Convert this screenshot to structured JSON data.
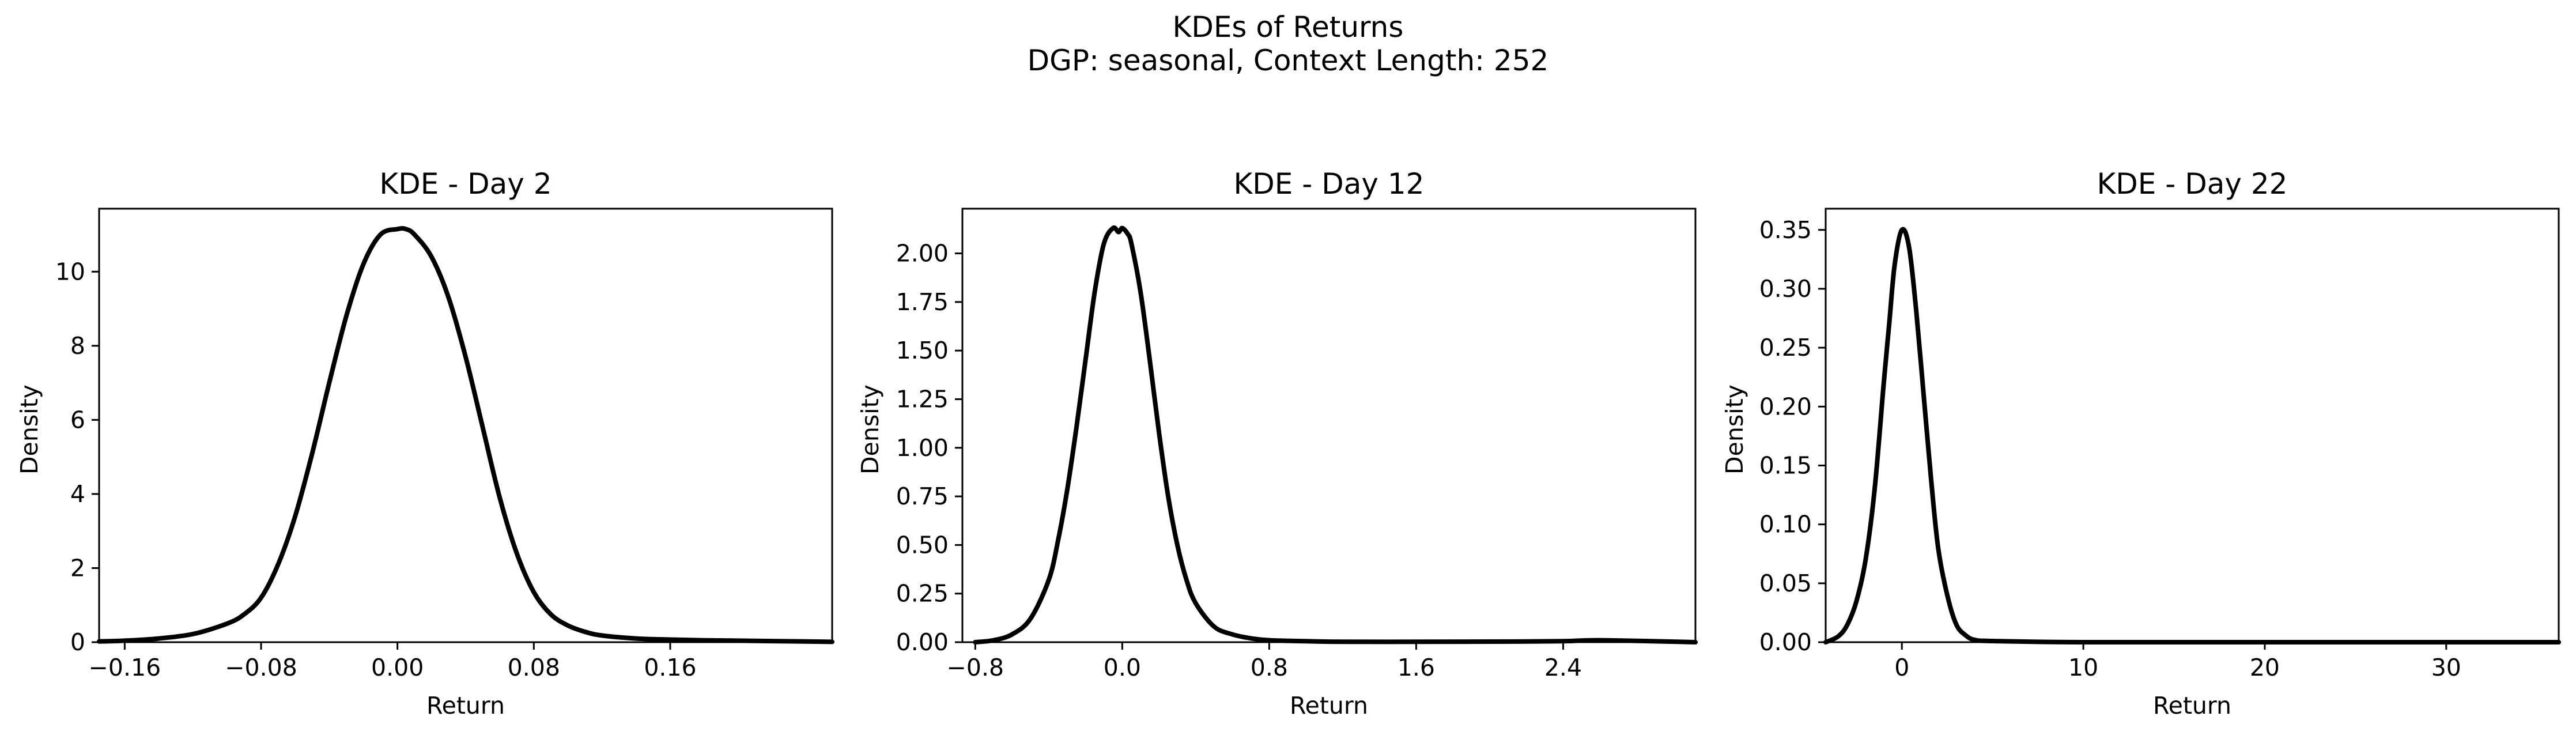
{
  "figure": {
    "title_line1": "KDEs of Returns",
    "title_line2": "DGP: seasonal, Context Length: 252"
  },
  "chart_data": [
    {
      "type": "line",
      "title": "KDE - Day 2",
      "xlabel": "Return",
      "ylabel": "Density",
      "xlim": [
        -0.175,
        0.255
      ],
      "ylim": [
        0,
        11.7
      ],
      "xticks": [
        -0.16,
        -0.08,
        0.0,
        0.08,
        0.16
      ],
      "xtick_labels": [
        "−0.16",
        "−0.08",
        "0.00",
        "0.08",
        "0.16"
      ],
      "yticks": [
        0,
        2,
        4,
        6,
        8,
        10
      ],
      "ytick_labels": [
        "0",
        "2",
        "4",
        "6",
        "8",
        "10"
      ],
      "grid": false,
      "line_color": "#000000",
      "series": [
        {
          "x": [
            -0.175,
            -0.16,
            -0.14,
            -0.12,
            -0.1,
            -0.09,
            -0.08,
            -0.07,
            -0.06,
            -0.05,
            -0.04,
            -0.03,
            -0.02,
            -0.01,
            0.0,
            0.005,
            0.01,
            0.02,
            0.03,
            0.04,
            0.05,
            0.06,
            0.07,
            0.08,
            0.09,
            0.1,
            0.11,
            0.12,
            0.14,
            0.16,
            0.18,
            0.2,
            0.22,
            0.255
          ],
          "y": [
            0.02,
            0.04,
            0.1,
            0.22,
            0.5,
            0.75,
            1.2,
            2.1,
            3.4,
            5.1,
            7.0,
            8.8,
            10.2,
            11.0,
            11.15,
            11.15,
            11.0,
            10.4,
            9.3,
            7.7,
            5.8,
            3.9,
            2.4,
            1.35,
            0.75,
            0.45,
            0.28,
            0.18,
            0.1,
            0.07,
            0.05,
            0.04,
            0.03,
            0.01
          ]
        }
      ]
    },
    {
      "type": "line",
      "title": "KDE - Day 12",
      "xlabel": "Return",
      "ylabel": "Density",
      "xlim": [
        -0.87,
        3.12
      ],
      "ylim": [
        0,
        2.23
      ],
      "xticks": [
        -0.8,
        0.0,
        0.8,
        1.6,
        2.4
      ],
      "xtick_labels": [
        "−0.8",
        "0.0",
        "0.8",
        "1.6",
        "2.4"
      ],
      "yticks": [
        0.0,
        0.25,
        0.5,
        0.75,
        1.0,
        1.25,
        1.5,
        1.75,
        2.0
      ],
      "ytick_labels": [
        "0.00",
        "0.25",
        "0.50",
        "0.75",
        "1.00",
        "1.25",
        "1.50",
        "1.75",
        "2.00"
      ],
      "grid": false,
      "line_color": "#000000",
      "series": [
        {
          "x": [
            -0.8,
            -0.7,
            -0.6,
            -0.5,
            -0.4,
            -0.35,
            -0.3,
            -0.25,
            -0.2,
            -0.15,
            -0.1,
            -0.05,
            -0.02,
            0.0,
            0.03,
            0.05,
            0.1,
            0.15,
            0.2,
            0.25,
            0.3,
            0.35,
            0.4,
            0.5,
            0.6,
            0.7,
            0.8,
            1.0,
            1.2,
            1.6,
            2.0,
            2.4,
            2.6,
            3.12
          ],
          "y": [
            0.0,
            0.01,
            0.04,
            0.12,
            0.32,
            0.52,
            0.78,
            1.1,
            1.45,
            1.8,
            2.05,
            2.13,
            2.11,
            2.13,
            2.1,
            2.05,
            1.8,
            1.45,
            1.08,
            0.75,
            0.5,
            0.32,
            0.2,
            0.08,
            0.04,
            0.02,
            0.01,
            0.005,
            0.002,
            0.002,
            0.003,
            0.005,
            0.01,
            0.0
          ]
        }
      ]
    },
    {
      "type": "line",
      "title": "KDE - Day 22",
      "xlabel": "Return",
      "ylabel": "Density",
      "xlim": [
        -4.2,
        36.2
      ],
      "ylim": [
        0,
        0.368
      ],
      "xticks": [
        0,
        10,
        20,
        30
      ],
      "xtick_labels": [
        "0",
        "10",
        "20",
        "30"
      ],
      "yticks": [
        0.0,
        0.05,
        0.1,
        0.15,
        0.2,
        0.25,
        0.3,
        0.35
      ],
      "ytick_labels": [
        "0.00",
        "0.05",
        "0.10",
        "0.15",
        "0.20",
        "0.25",
        "0.30",
        "0.35"
      ],
      "grid": false,
      "line_color": "#000000",
      "series": [
        {
          "x": [
            -4.2,
            -3.5,
            -3.0,
            -2.5,
            -2.0,
            -1.5,
            -1.0,
            -0.7,
            -0.4,
            0.0,
            0.4,
            0.8,
            1.2,
            1.6,
            2.0,
            2.5,
            3.0,
            3.5,
            4.0,
            5.0,
            10.0,
            20.0,
            30.0,
            36.2
          ],
          "y": [
            0.0,
            0.005,
            0.015,
            0.035,
            0.07,
            0.13,
            0.22,
            0.27,
            0.32,
            0.35,
            0.335,
            0.28,
            0.21,
            0.14,
            0.08,
            0.04,
            0.015,
            0.006,
            0.002,
            0.001,
            0.0,
            0.0,
            0.0,
            0.0
          ]
        }
      ]
    }
  ]
}
